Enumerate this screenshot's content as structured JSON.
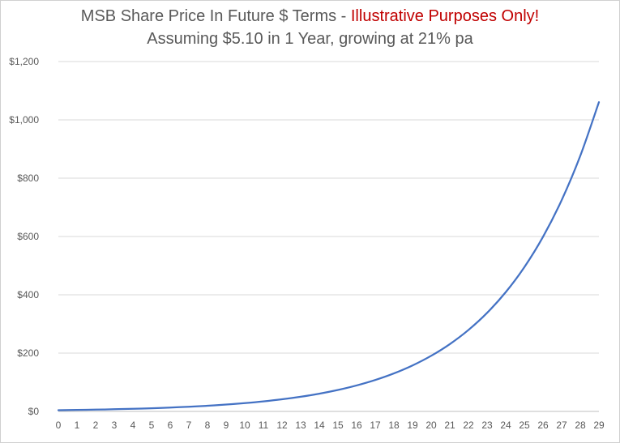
{
  "chart_data": {
    "type": "line",
    "title": "MSB Share Price In Future $ Terms - ",
    "title_emphasis": "Illustrative Purposes Only!",
    "subtitle": "Assuming $5.10 in 1 Year, growing at 21% pa",
    "xlabel": "",
    "ylabel": "",
    "x": [
      0,
      1,
      2,
      3,
      4,
      5,
      6,
      7,
      8,
      9,
      10,
      11,
      12,
      13,
      14,
      15,
      16,
      17,
      18,
      19,
      20,
      21,
      22,
      23,
      24,
      25,
      26,
      27,
      28,
      29
    ],
    "series": [
      {
        "values": [
          4.21,
          5.1,
          6.17,
          7.47,
          9.04,
          10.93,
          13.23,
          16.01,
          19.37,
          23.44,
          28.36,
          34.31,
          41.52,
          50.24,
          60.79,
          73.55,
          89.0,
          107.69,
          130.3,
          157.67,
          190.78,
          230.85,
          279.33,
          337.99,
          408.96,
          494.84,
          598.76,
          724.5,
          876.65,
          1060.74
        ],
        "color": "#4472c4"
      }
    ],
    "yticks": [
      "$0",
      "$200",
      "$400",
      "$600",
      "$800",
      "$1,000",
      "$1,200"
    ],
    "ylim": [
      0,
      1200
    ],
    "grid": "horizontal",
    "legend": "none"
  }
}
